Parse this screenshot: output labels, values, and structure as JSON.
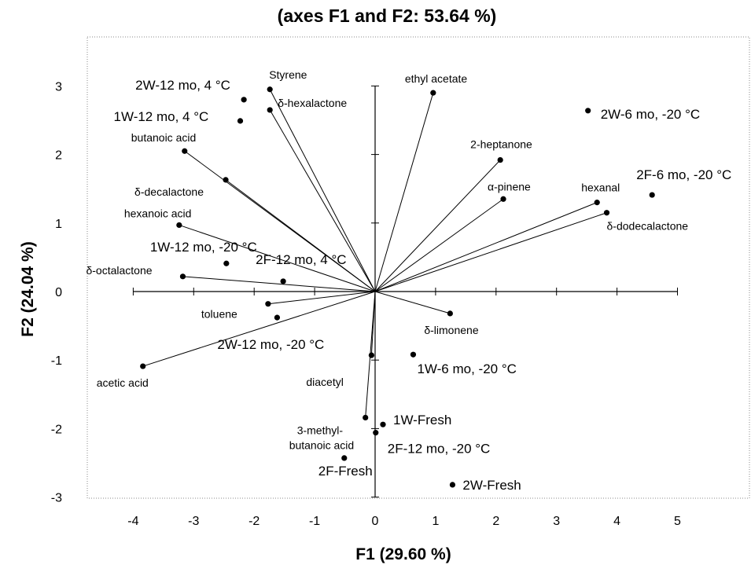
{
  "chart_data": {
    "type": "scatter",
    "title": "(axes F1 and F2: 53.64 %)",
    "xlabel": "F1 (29.60 %)",
    "ylabel": "F2 (24.04 %)",
    "xlim": [
      -4.85,
      6.3
    ],
    "ylim": [
      -3.15,
      3.7
    ],
    "xticks": [
      -4,
      -3,
      -2,
      -1,
      0,
      1,
      2,
      3,
      4,
      5
    ],
    "yticks": [
      3,
      2,
      1,
      0,
      -1,
      -2,
      -3
    ],
    "grid": false,
    "legend": "none",
    "variables": [
      {
        "label": "Styrene",
        "x": -1.74,
        "y": 2.95
      },
      {
        "label": "δ-hexalactone",
        "x": -1.74,
        "y": 2.65
      },
      {
        "label": "ethyl acetate",
        "x": 0.96,
        "y": 2.9
      },
      {
        "label": "butanoic acid",
        "x": -3.15,
        "y": 2.05
      },
      {
        "label": "δ-decalactone",
        "x": -2.47,
        "y": 1.63
      },
      {
        "label": "2-heptanone",
        "x": 2.07,
        "y": 1.92
      },
      {
        "label": "α-pinene",
        "x": 2.12,
        "y": 1.35
      },
      {
        "label": "hexanal",
        "x": 3.67,
        "y": 1.3
      },
      {
        "label": "δ-dodecalactone",
        "x": 3.83,
        "y": 1.15
      },
      {
        "label": "hexanoic acid",
        "x": -3.24,
        "y": 0.97
      },
      {
        "label": "δ-octalactone",
        "x": -3.18,
        "y": 0.22
      },
      {
        "label": "toluene",
        "x": -1.77,
        "y": -0.18
      },
      {
        "label": "δ-limonene",
        "x": 1.24,
        "y": -0.32
      },
      {
        "label": "acetic acid",
        "x": -3.84,
        "y": -1.09
      },
      {
        "label": "diacetyl",
        "x": -0.06,
        "y": -0.93
      },
      {
        "label": "3-methyl-butanoic acid",
        "x": -0.16,
        "y": -1.84
      }
    ],
    "observations": [
      {
        "label": "2W-12 mo, 4 °C",
        "x": -2.17,
        "y": 2.8
      },
      {
        "label": "1W-12 mo, 4 °C",
        "x": -2.23,
        "y": 2.49
      },
      {
        "label": "2W-6 mo, -20 °C",
        "x": 3.52,
        "y": 2.64
      },
      {
        "label": "2F-6 mo, -20 °C",
        "x": 4.58,
        "y": 1.41
      },
      {
        "label": "1W-12 mo, -20 °C",
        "x": -2.46,
        "y": 0.41
      },
      {
        "label": "2F-12 mo, 4 °C",
        "x": -1.52,
        "y": 0.15
      },
      {
        "label": "2W-12 mo, -20 °C",
        "x": -1.62,
        "y": -0.38
      },
      {
        "label": "1W-6 mo, -20 °C",
        "x": 0.63,
        "y": -0.92
      },
      {
        "label": "1W-Fresh",
        "x": 0.13,
        "y": -1.94
      },
      {
        "label": "2F-12 mo, -20 °C",
        "x": 0.01,
        "y": -2.06
      },
      {
        "label": "2F-Fresh",
        "x": -0.51,
        "y": -2.43
      },
      {
        "label": "2W-Fresh",
        "x": 1.28,
        "y": -2.82
      }
    ]
  }
}
